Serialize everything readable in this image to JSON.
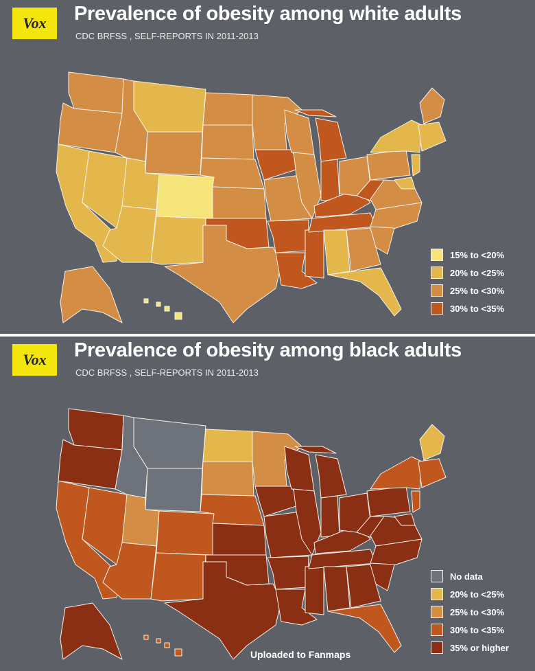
{
  "colors": {
    "background": "#5d6167",
    "logo": "#f4e60c",
    "c15": "#f6e57a",
    "c20": "#e3b74b",
    "c25": "#d48d45",
    "c30": "#c0571f",
    "c35": "#8a2e14",
    "nodata": "#6e737b"
  },
  "panels": [
    {
      "logo": "Vox",
      "title": "Prevalence of obesity among white adults",
      "subtitle": "CDC  BRFSS , SELF-REPORTS IN 2011-2013",
      "legend": [
        {
          "label": "15% to <20%",
          "color": "#f6e57a"
        },
        {
          "label": "20% to <25%",
          "color": "#e3b74b"
        },
        {
          "label": "25% to <30%",
          "color": "#d48d45"
        },
        {
          "label": "30% to <35%",
          "color": "#c0571f"
        }
      ],
      "states": {
        "WA": "c25",
        "OR": "c25",
        "CA": "c20",
        "NV": "c20",
        "ID": "c25",
        "MT": "c20",
        "WY": "c25",
        "UT": "c20",
        "AZ": "c20",
        "CO": "c15",
        "NM": "c20",
        "ND": "c25",
        "SD": "c25",
        "NE": "c25",
        "KS": "c25",
        "OK": "c30",
        "TX": "c25",
        "MN": "c25",
        "IA": "c30",
        "MO": "c25",
        "AR": "c30",
        "LA": "c30",
        "WI": "c25",
        "IL": "c25",
        "MS": "c30",
        "MI": "c30",
        "IN": "c30",
        "KY": "c30",
        "TN": "c30",
        "AL": "c20",
        "OH": "c25",
        "WV": "c30",
        "VA": "c25",
        "NC": "c25",
        "SC": "c25",
        "GA": "c25",
        "FL": "c20",
        "PA": "c25",
        "NY": "c20",
        "ME": "c25",
        "NE_region": "c20",
        "NJ": "c20",
        "MD": "c20",
        "AK": "c25",
        "HI": "c15"
      }
    },
    {
      "logo": "Vox",
      "title": "Prevalence of obesity among black adults",
      "subtitle": "CDC  BRFSS , SELF-REPORTS IN 2011-2013",
      "legend": [
        {
          "label": "No data",
          "color": "#6e737b"
        },
        {
          "label": "20% to <25%",
          "color": "#e3b74b"
        },
        {
          "label": "25% to <30%",
          "color": "#d48d45"
        },
        {
          "label": "30% to <35%",
          "color": "#c0571f"
        },
        {
          "label": "35% or higher",
          "color": "#8a2e14"
        }
      ],
      "states": {
        "WA": "c35",
        "OR": "c35",
        "CA": "c30",
        "NV": "c30",
        "ID": "nodata",
        "MT": "nodata",
        "WY": "nodata",
        "UT": "c25",
        "AZ": "c30",
        "CO": "c30",
        "NM": "c30",
        "ND": "c20",
        "SD": "c25",
        "NE": "c30",
        "KS": "c35",
        "OK": "c35",
        "TX": "c35",
        "MN": "c25",
        "IA": "c35",
        "MO": "c35",
        "AR": "c35",
        "LA": "c35",
        "WI": "c35",
        "IL": "c35",
        "MS": "c35",
        "MI": "c35",
        "IN": "c35",
        "KY": "c35",
        "TN": "c35",
        "AL": "c35",
        "OH": "c35",
        "WV": "c35",
        "VA": "c35",
        "NC": "c35",
        "SC": "c35",
        "GA": "c35",
        "FL": "c30",
        "PA": "c35",
        "NY": "c30",
        "ME": "c20",
        "NE_region": "c30",
        "NJ": "c30",
        "MD": "c35",
        "AK": "c35",
        "HI": "c30"
      },
      "credit": "Uploaded to Fanmaps"
    }
  ]
}
